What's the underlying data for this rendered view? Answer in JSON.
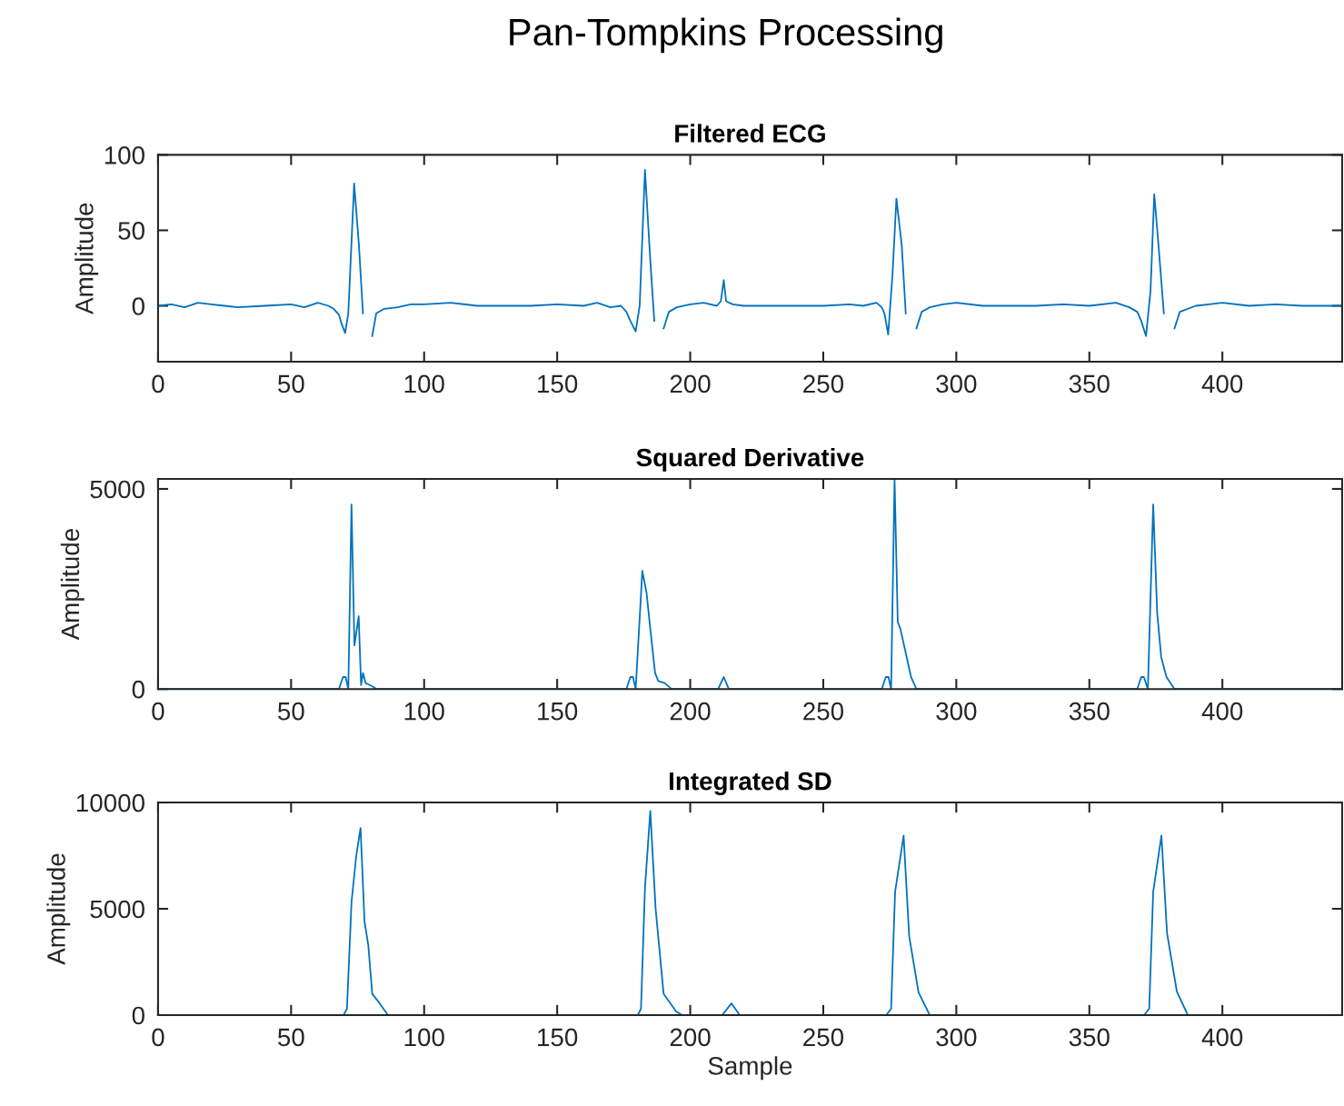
{
  "chart_data": [
    {
      "type": "line",
      "title": "Filtered ECG",
      "ylabel": "Amplitude",
      "xlim": [
        0,
        445
      ],
      "ylim": [
        -37,
        100
      ],
      "xticks": [
        0,
        50,
        100,
        150,
        200,
        250,
        300,
        350,
        400
      ],
      "yticks": [
        0,
        50,
        100
      ],
      "grid": false,
      "annotations": [
        "Pan-Tompkins Processing"
      ],
      "series": [
        {
          "color": "#0072bd",
          "x": [
            0,
            5,
            10,
            15,
            20,
            25,
            30,
            40,
            50,
            55,
            60,
            64,
            66,
            68,
            69,
            70.3,
            71.5,
            73.7,
            75.5,
            77,
            78.8,
            80.5,
            82,
            85,
            90,
            95,
            100,
            110,
            120,
            130,
            140,
            150,
            160,
            165,
            170,
            174,
            176,
            177.5,
            179.5,
            181,
            183,
            185,
            186.5,
            188.4,
            190,
            192,
            195,
            200,
            205,
            210,
            211.5,
            212.6,
            213.5,
            216,
            220,
            230,
            240,
            250,
            260,
            265,
            270,
            272,
            273,
            274.4,
            276,
            277.5,
            279.5,
            281,
            283,
            285,
            287,
            290,
            295,
            300,
            310,
            320,
            330,
            340,
            350,
            360,
            365,
            368,
            369.5,
            371.3,
            373,
            374.4,
            376,
            378,
            380,
            382,
            384,
            390,
            395,
            400,
            410,
            420,
            430,
            440,
            445
          ],
          "values": [
            0,
            1,
            -1,
            2,
            1,
            0,
            -1,
            0,
            1,
            -1,
            2,
            0,
            -2,
            -6,
            -12,
            -18,
            -5,
            81,
            40,
            -5,
            null,
            -20,
            -5,
            -2,
            -1,
            1,
            1,
            2,
            0,
            0,
            0,
            1,
            0,
            2,
            -1,
            0,
            -4,
            -10,
            -17,
            0,
            90,
            30,
            -10,
            null,
            -15,
            -4,
            -1,
            1,
            2,
            0,
            3,
            17,
            3,
            1,
            0,
            0,
            0,
            0,
            1,
            0,
            2,
            -1,
            -5,
            -19,
            20,
            71,
            40,
            -5,
            null,
            -15,
            -4,
            -1,
            1,
            2,
            0,
            0,
            0,
            1,
            0,
            2,
            -1,
            -4,
            -10,
            -20,
            10,
            74,
            40,
            -5,
            null,
            -15,
            -4,
            0,
            1,
            2,
            0,
            1,
            0,
            0,
            0
          ]
        }
      ]
    },
    {
      "type": "line",
      "title": "Squared Derivative",
      "ylabel": "Amplitude",
      "xlim": [
        0,
        445
      ],
      "ylim": [
        0,
        5250
      ],
      "xticks": [
        0,
        50,
        100,
        150,
        200,
        250,
        300,
        350,
        400
      ],
      "yticks": [
        0,
        5000
      ],
      "grid": false,
      "series": [
        {
          "color": "#0072bd",
          "x": [
            0,
            68,
            69.5,
            70.5,
            71.5,
            72.7,
            73.8,
            75.4,
            76.3,
            77,
            78,
            79.5,
            81,
            82,
            176,
            177.5,
            178.5,
            179.5,
            182,
            183.6,
            185,
            186.8,
            188,
            190.4,
            193,
            210.5,
            212.6,
            214.5,
            272,
            273.5,
            274.5,
            275.5,
            276.8,
            278,
            279,
            281,
            283,
            285,
            368,
            369.5,
            370.5,
            372,
            374,
            375.5,
            377,
            379,
            382,
            445
          ],
          "values": [
            0,
            0,
            300,
            300,
            0,
            4610,
            1090,
            1820,
            100,
            400,
            150,
            100,
            50,
            0,
            0,
            300,
            300,
            0,
            2950,
            2400,
            1500,
            400,
            200,
            150,
            0,
            0,
            300,
            0,
            0,
            300,
            300,
            0,
            5250,
            1680,
            1500,
            900,
            300,
            0,
            0,
            300,
            300,
            0,
            4610,
            1900,
            800,
            300,
            0,
            0
          ]
        }
      ]
    },
    {
      "type": "line",
      "title": "Integrated SD",
      "xlabel": "Sample",
      "ylabel": "Amplitude",
      "xlim": [
        0,
        445
      ],
      "ylim": [
        0,
        10000
      ],
      "xticks": [
        0,
        50,
        100,
        150,
        200,
        250,
        300,
        350,
        400
      ],
      "yticks": [
        0,
        5000,
        10000
      ],
      "grid": false,
      "series": [
        {
          "color": "#0072bd",
          "x": [
            0,
            69.7,
            71,
            72.7,
            74.5,
            76.1,
            77.6,
            79,
            80.5,
            83,
            86.4,
            180.3,
            181.5,
            183,
            185,
            187,
            190,
            194.7,
            197,
            212,
            215.5,
            218.6,
            273.7,
            275.5,
            277,
            280.2,
            282.3,
            285.8,
            290,
            370.6,
            372.5,
            374,
            377.1,
            379.2,
            382.9,
            387,
            445
          ],
          "values": [
            0,
            0,
            300,
            5300,
            7500,
            8800,
            4400,
            3300,
            1000,
            600,
            0,
            0,
            300,
            6000,
            9600,
            5000,
            1000,
            170,
            0,
            0,
            550,
            0,
            0,
            300,
            5800,
            8450,
            3700,
            1070,
            0,
            0,
            300,
            5800,
            8450,
            3850,
            1100,
            0,
            0
          ]
        }
      ]
    }
  ]
}
